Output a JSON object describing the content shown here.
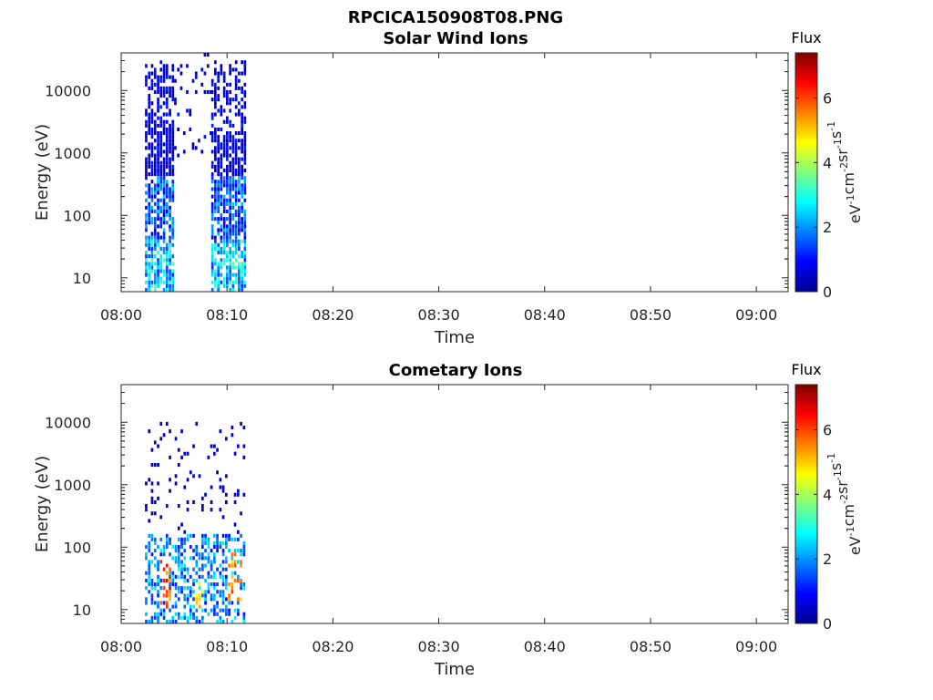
{
  "figure_title": "RPCICA150908T08.PNG",
  "colors": {
    "axis": "#262626",
    "background": "#ffffff",
    "colormap": "jet"
  },
  "chart_data": [
    {
      "type": "heatmap",
      "title": "Solar Wind Ions",
      "xlabel": "Time",
      "ylabel": "Energy (eV)",
      "x_ticks": [
        "08:00",
        "08:10",
        "08:20",
        "08:30",
        "08:40",
        "08:50",
        "09:00"
      ],
      "x_range_minutes": [
        0,
        63
      ],
      "y_scale": "log",
      "y_ticks": [
        "10",
        "100",
        "1000",
        "10000"
      ],
      "y_range": [
        6,
        40000
      ],
      "colorbar": {
        "label": "Flux",
        "unit_parts": [
          [
            "eV",
            "-1"
          ],
          [
            "cm",
            "-2"
          ],
          [
            "sr",
            "-1"
          ],
          [
            "s",
            "-1"
          ]
        ],
        "ticks": [
          "0",
          "2",
          "4",
          "6"
        ],
        "range": [
          0,
          7.4
        ]
      },
      "data_windows": [
        {
          "t_start": "08:02:15",
          "t_end": "08:05:00",
          "e_min": 6,
          "e_max": 30000
        },
        {
          "t_start": "08:05:00",
          "t_end": "08:08:30",
          "e_min": 800,
          "e_max": 35000,
          "sparse": true
        },
        {
          "t_start": "08:08:30",
          "t_end": "08:11:40",
          "e_min": 6,
          "e_max": 30000
        }
      ]
    },
    {
      "type": "heatmap",
      "title": "Cometary Ions",
      "xlabel": "Time",
      "ylabel": "Energy (eV)",
      "x_ticks": [
        "08:00",
        "08:10",
        "08:20",
        "08:30",
        "08:40",
        "08:50",
        "09:00"
      ],
      "x_range_minutes": [
        0,
        63
      ],
      "y_scale": "log",
      "y_ticks": [
        "10",
        "100",
        "1000",
        "10000"
      ],
      "y_range": [
        6,
        40000
      ],
      "colorbar": {
        "label": "Flux",
        "unit_parts": [
          [
            "eV",
            "-1"
          ],
          [
            "cm",
            "-2"
          ],
          [
            "sr",
            "-1"
          ],
          [
            "s",
            "-1"
          ]
        ],
        "ticks": [
          "0",
          "2",
          "4",
          "6"
        ],
        "range": [
          0,
          7.4
        ]
      },
      "data_windows": [
        {
          "t_start": "08:02:15",
          "t_end": "08:11:40",
          "e_min": 6,
          "e_max": 10000
        }
      ],
      "peak_flux_regions": [
        {
          "t_start": "08:03:30",
          "t_end": "08:04:40",
          "e_min": 10,
          "e_max": 60,
          "flux": 6.5
        },
        {
          "t_start": "08:06:50",
          "t_end": "08:07:50",
          "e_min": 10,
          "e_max": 25,
          "flux": 5.5
        },
        {
          "t_start": "08:09:50",
          "t_end": "08:11:20",
          "e_min": 12,
          "e_max": 80,
          "flux": 6.2
        }
      ]
    }
  ]
}
